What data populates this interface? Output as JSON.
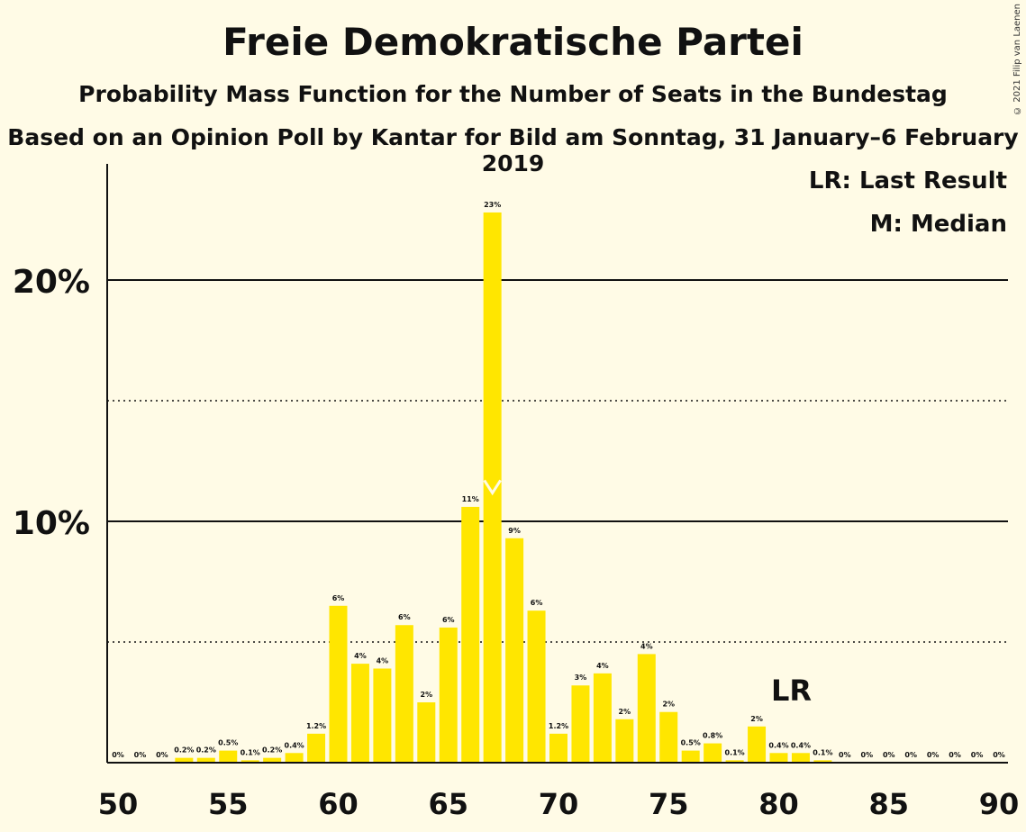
{
  "title": "Freie Demokratische Partei",
  "subtitle": "Probability Mass Function for the Number of Seats in the Bundestag",
  "subtitle2": "Based on an Opinion Poll by Kantar for Bild am Sonntag, 31 January–6 February 2019",
  "copyright": "© 2021 Filip van Laenen",
  "legend": {
    "lr": "LR: Last Result",
    "median": "M: Median"
  },
  "chart_data": {
    "type": "bar",
    "bar_color": "#ffe600",
    "x": [
      50,
      51,
      52,
      53,
      54,
      55,
      56,
      57,
      58,
      59,
      60,
      61,
      62,
      63,
      64,
      65,
      66,
      67,
      68,
      69,
      70,
      71,
      72,
      73,
      74,
      75,
      76,
      77,
      78,
      79,
      80,
      81,
      82,
      83,
      84,
      85,
      86,
      87,
      88,
      89,
      90
    ],
    "values": [
      0,
      0,
      0,
      0.2,
      0.2,
      0.5,
      0.1,
      0.2,
      0.4,
      1.2,
      6.5,
      4.1,
      3.9,
      5.7,
      2.5,
      5.6,
      10.6,
      22.8,
      9.3,
      6.3,
      1.2,
      3.2,
      3.7,
      1.8,
      4.5,
      2.1,
      0.5,
      0.8,
      0.1,
      1.5,
      0.4,
      0.4,
      0.1,
      0,
      0,
      0,
      0,
      0,
      0,
      0,
      0
    ],
    "labels": [
      "0%",
      "0%",
      "0%",
      "0.2%",
      "0.2%",
      "0.5%",
      "0.1%",
      "0.2%",
      "0.4%",
      "1.2%",
      "6%",
      "4%",
      "4%",
      "6%",
      "2%",
      "6%",
      "11%",
      "23%",
      "9%",
      "6%",
      "1.2%",
      "3%",
      "4%",
      "2%",
      "4%",
      "2%",
      "0.5%",
      "0.8%",
      "0.1%",
      "2%",
      "0.4%",
      "0.4%",
      "0.1%",
      "0%",
      "0%",
      "0%",
      "0%",
      "0%",
      "0%",
      "0%",
      "0%"
    ],
    "xticks": [
      50,
      55,
      60,
      65,
      70,
      75,
      80,
      85,
      90
    ],
    "xtick_labels": [
      "50",
      "55",
      "60",
      "65",
      "70",
      "75",
      "80",
      "85",
      "90"
    ],
    "yticks_major": [
      10,
      20
    ],
    "ytick_labels": [
      "10%",
      "20%"
    ],
    "yticks_minor": [
      5,
      15
    ],
    "ylim": [
      0,
      25
    ],
    "median": 67,
    "median_marker": "M",
    "last_result": 80,
    "last_result_label": "LR"
  }
}
